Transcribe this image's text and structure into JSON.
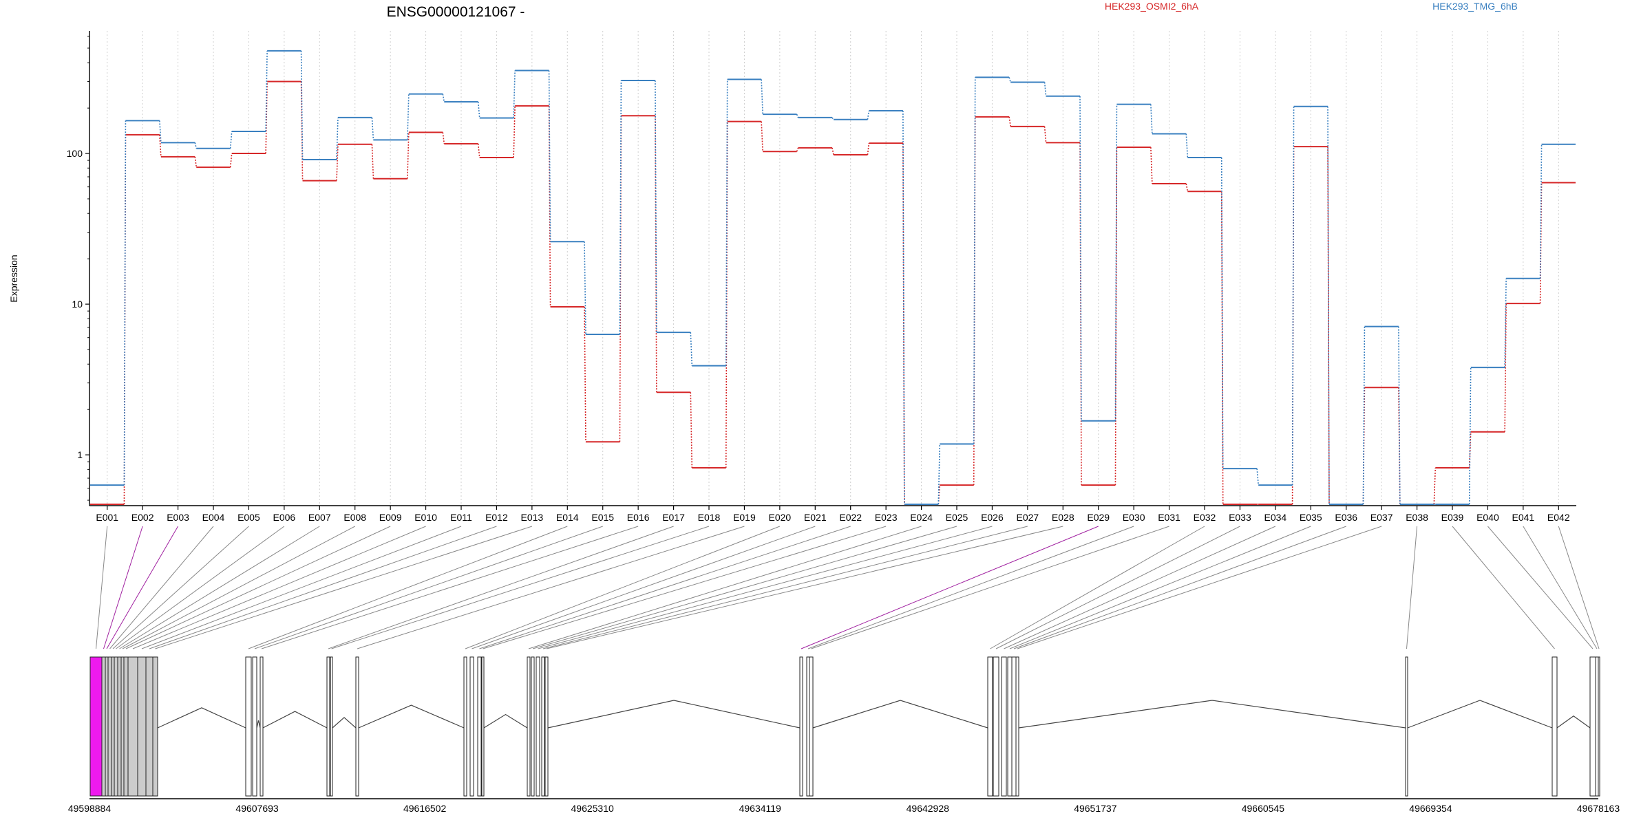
{
  "chart_data": {
    "type": "line",
    "title": "ENSG00000121067 -",
    "ylabel": "Expression",
    "y_scale": "log",
    "ylim": [
      0.46,
      650
    ],
    "y_ticks": [
      1,
      10,
      100
    ],
    "y_tick_labels": [
      "1",
      "10",
      "100"
    ],
    "grid": "vertical dotted gridlines at each exon",
    "categories": [
      "E001",
      "E002",
      "E003",
      "E004",
      "E005",
      "E006",
      "E007",
      "E008",
      "E009",
      "E010",
      "E011",
      "E012",
      "E013",
      "E014",
      "E015",
      "E016",
      "E017",
      "E018",
      "E019",
      "E020",
      "E021",
      "E022",
      "E023",
      "E024",
      "E025",
      "E026",
      "E027",
      "E028",
      "E029",
      "E030",
      "E031",
      "E032",
      "E033",
      "E034",
      "E035",
      "E036",
      "E037",
      "E038",
      "E039",
      "E040",
      "E041",
      "E042"
    ],
    "series": [
      {
        "name": "HEK293_OSMI2_6hA",
        "color": "#d62728",
        "values": [
          0.47,
          133,
          95,
          81,
          100,
          300,
          66,
          115,
          68,
          138,
          116,
          94,
          207,
          9.6,
          1.22,
          178,
          2.6,
          0.82,
          163,
          103,
          109,
          98,
          117,
          0.47,
          0.63,
          175,
          151,
          118,
          0.63,
          110,
          63,
          56,
          0.47,
          0.47,
          111,
          0.47,
          2.8,
          0.47,
          0.82,
          1.42,
          10.1,
          64
        ]
      },
      {
        "name": "HEK293_TMG_6hB",
        "color": "#3a80c0",
        "values": [
          0.63,
          165,
          118,
          108,
          140,
          480,
          91,
          173,
          123,
          248,
          220,
          172,
          355,
          26,
          6.3,
          305,
          6.5,
          3.9,
          310,
          182,
          173,
          168,
          192,
          0.47,
          1.18,
          320,
          297,
          240,
          1.68,
          212,
          135,
          94,
          0.81,
          0.63,
          205,
          0.47,
          7.1,
          0.47,
          0.47,
          3.8,
          14.8,
          115
        ]
      }
    ],
    "gene_model": {
      "coordinate_ticks": [
        "49598884",
        "49607693",
        "49616502",
        "49625310",
        "49634119",
        "49642928",
        "49651737",
        "49660545",
        "49669354",
        "49678163"
      ],
      "xlim": [
        49598884,
        49678163
      ]
    }
  }
}
